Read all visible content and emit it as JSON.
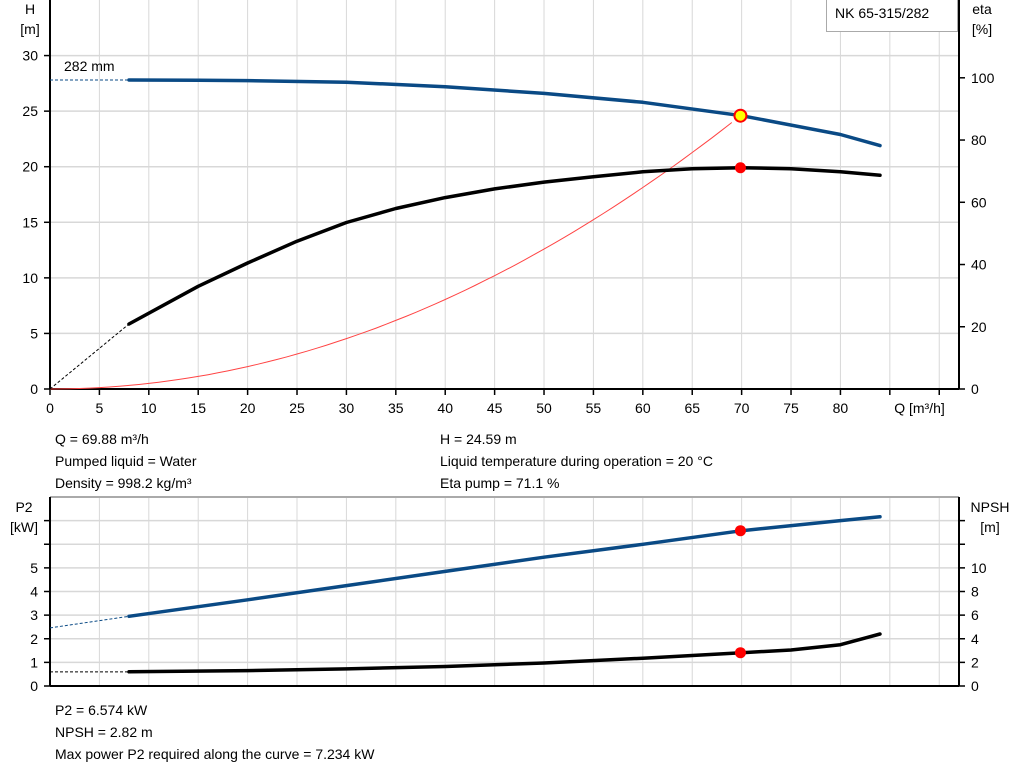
{
  "chart_data": [
    {
      "type": "line",
      "model": "NK 65-315/282",
      "impeller_label": "282 mm",
      "xlabel": "Q [m³/h]",
      "ylabel_left": [
        "H",
        "[m]"
      ],
      "ylabel_right": [
        "eta",
        "[%]"
      ],
      "xlim": [
        0,
        92
      ],
      "ylim_left": [
        0,
        35
      ],
      "ylim_right": [
        0,
        125
      ],
      "xticks": [
        0,
        5,
        10,
        15,
        20,
        25,
        30,
        35,
        40,
        45,
        50,
        55,
        60,
        65,
        70,
        75,
        80
      ],
      "yticks_left": [
        0,
        5,
        10,
        15,
        20,
        25,
        30
      ],
      "yticks_right": [
        0,
        20,
        40,
        60,
        80,
        100
      ],
      "grid": true,
      "series": [
        {
          "key": "H",
          "axis": "left",
          "color": "#0a4a85",
          "x": [
            8,
            15,
            20,
            30,
            40,
            50,
            60,
            70,
            80,
            84
          ],
          "y": [
            27.8,
            27.78,
            27.75,
            27.6,
            27.2,
            26.6,
            25.8,
            24.59,
            22.9,
            21.9
          ],
          "extrapolated_from": [
            0,
            27.8
          ]
        },
        {
          "key": "eta",
          "axis": "right",
          "color": "#000000",
          "x": [
            8,
            15,
            20,
            25,
            30,
            35,
            40,
            45,
            50,
            55,
            60,
            65,
            70,
            75,
            80,
            84
          ],
          "y": [
            20.9,
            33,
            40.5,
            47.5,
            53.5,
            58,
            61.5,
            64.3,
            66.5,
            68.2,
            69.8,
            70.8,
            71.1,
            70.8,
            69.8,
            68.7
          ],
          "extrapolated_from": [
            0,
            0
          ]
        },
        {
          "key": "system",
          "axis": "left",
          "color": "#ff4444",
          "quadratic_through": [
            69.88,
            24.59
          ]
        }
      ],
      "operating_point": {
        "Q": 69.88,
        "H": 24.59,
        "eta": 71.1
      }
    },
    {
      "type": "line",
      "ylabel_left": [
        "P2",
        "[kW]"
      ],
      "ylabel_right": [
        "NPSH",
        "[m]"
      ],
      "ylim_left": [
        0,
        8
      ],
      "ylim_right": [
        0,
        16
      ],
      "yticks_left": [
        0,
        1,
        2,
        3,
        4,
        5
      ],
      "yticks_right": [
        0,
        2,
        4,
        6,
        8,
        10
      ],
      "grid": true,
      "series": [
        {
          "key": "P2",
          "axis": "left",
          "color": "#0a4a85",
          "x": [
            8,
            20,
            30,
            40,
            50,
            60,
            70,
            80,
            84
          ],
          "y": [
            2.95,
            3.65,
            4.25,
            4.85,
            5.45,
            6.0,
            6.574,
            7.0,
            7.16
          ],
          "extrapolated_from": [
            0,
            2.46
          ]
        },
        {
          "key": "NPSH",
          "axis": "right",
          "color": "#000000",
          "x": [
            8,
            20,
            30,
            40,
            50,
            60,
            70,
            75,
            80,
            84
          ],
          "y": [
            1.2,
            1.3,
            1.45,
            1.65,
            1.95,
            2.35,
            2.82,
            3.05,
            3.5,
            4.4
          ],
          "extrapolated_from": [
            0,
            1.2
          ]
        }
      ],
      "operating_point": {
        "Q": 69.88,
        "P2": 6.574,
        "NPSH": 2.82
      }
    }
  ],
  "info_top": {
    "q": "Q = 69.88 m³/h",
    "liquid": "Pumped liquid = Water",
    "density": "Density = 998.2 kg/m³",
    "h": "H = 24.59 m",
    "temp": "Liquid temperature during operation = 20 °C",
    "eta": "Eta pump = 71.1 %"
  },
  "info_bottom": {
    "p2": "P2 = 6.574 kW",
    "npsh": "NPSH = 2.82 m",
    "max_power": "Max power P2 required along the curve = 7.234 kW"
  },
  "colors": {
    "grid": "#d8d8d8",
    "point": "#ff0000",
    "point_highlight": "#ffff00"
  }
}
